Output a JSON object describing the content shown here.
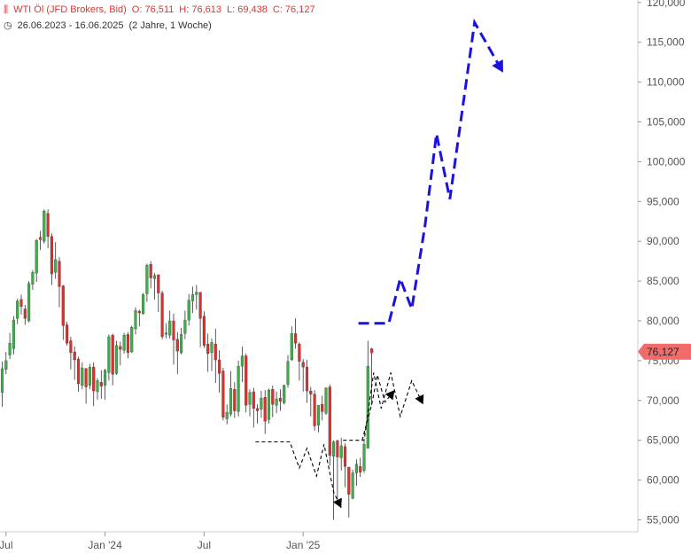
{
  "header": {
    "instrument": "WTI Öl (JFD Brokers, Bid)",
    "open": "O: 76,511",
    "high": "H: 76,613",
    "low": "L: 69,438",
    "close": "C: 76,127",
    "date_range": "26.06.2023 - 16.06.2025",
    "period": "(2 Jahre, 1 Woche)",
    "colors": {
      "ohlc": "#e0332d",
      "meta": "#333333"
    }
  },
  "chart_data": {
    "type": "candlestick",
    "y_axis": {
      "side": "right",
      "ticks": [
        55000,
        60000,
        65000,
        70000,
        75000,
        80000,
        85000,
        90000,
        95000,
        100000,
        105000,
        110000,
        115000,
        120000
      ],
      "tick_labels": [
        "55,000",
        "60,000",
        "65,000",
        "70,000",
        "75,000",
        "80,000",
        "85,000",
        "90,000",
        "95,000",
        "100,000",
        "105,000",
        "110,000",
        "115,000",
        "120,000"
      ],
      "range": [
        53500,
        120500
      ]
    },
    "x_axis": {
      "ticks": [
        {
          "label": "Jul",
          "week": 1
        },
        {
          "label": "Jan '24",
          "week": 27
        },
        {
          "label": "Jul",
          "week": 53
        },
        {
          "label": "Jan '25",
          "week": 79
        }
      ],
      "weeks": 105
    },
    "last_price": "76,127",
    "colors": {
      "up": "#3fae49",
      "down": "#d9312d",
      "wick": "#333333",
      "projection_big": "#1a12e0",
      "projection_small": "#000000",
      "price_tag": "#f26b6b"
    },
    "candles": [
      [
        71.0,
        74.0,
        69.2,
        74.9
      ],
      [
        73.9,
        75.0,
        73.3,
        76.1
      ],
      [
        75.7,
        77.2,
        75.2,
        78.5
      ],
      [
        76.5,
        80.1,
        75.8,
        80.6
      ],
      [
        80.3,
        82.5,
        79.6,
        82.8
      ],
      [
        82.7,
        81.8,
        80.8,
        83.3
      ],
      [
        81.5,
        80.3,
        79.5,
        82.0
      ],
      [
        80.0,
        84.7,
        79.8,
        85.0
      ],
      [
        84.6,
        86.1,
        83.9,
        86.4
      ],
      [
        86.0,
        90.1,
        84.9,
        90.3
      ],
      [
        90.5,
        90.2,
        88.9,
        91.3
      ],
      [
        90.0,
        93.8,
        89.7,
        94.0
      ],
      [
        93.5,
        90.6,
        89.1,
        94.0
      ],
      [
        90.6,
        85.9,
        84.5,
        91.0
      ],
      [
        86.1,
        87.7,
        85.3,
        89.9
      ],
      [
        87.5,
        84.3,
        81.7,
        88.0
      ],
      [
        84.4,
        79.4,
        77.6,
        84.5
      ],
      [
        79.5,
        77.2,
        76.9,
        79.9
      ],
      [
        77.5,
        76.0,
        73.9,
        78.0
      ],
      [
        76.1,
        75.1,
        72.6,
        76.8
      ],
      [
        75.2,
        72.1,
        71.1,
        75.5
      ],
      [
        71.9,
        74.1,
        71.4,
        74.8
      ],
      [
        74.0,
        71.7,
        69.6,
        74.1
      ],
      [
        71.9,
        74.2,
        71.4,
        74.6
      ],
      [
        74.2,
        71.2,
        69.3,
        74.8
      ],
      [
        71.1,
        72.5,
        70.1,
        72.8
      ],
      [
        72.3,
        71.8,
        70.2,
        73.8
      ],
      [
        71.9,
        73.8,
        70.1,
        74.0
      ],
      [
        73.5,
        78.0,
        72.5,
        78.3
      ],
      [
        78.2,
        73.3,
        71.9,
        78.4
      ],
      [
        73.4,
        76.9,
        73.2,
        77.5
      ],
      [
        76.8,
        76.4,
        74.4,
        77.4
      ],
      [
        76.3,
        78.2,
        75.9,
        78.5
      ],
      [
        78.3,
        76.0,
        75.3,
        78.6
      ],
      [
        76.1,
        79.2,
        76.0,
        79.4
      ],
      [
        79.0,
        81.3,
        78.3,
        81.7
      ],
      [
        81.2,
        81.0,
        79.3,
        81.4
      ],
      [
        80.9,
        83.3,
        80.8,
        83.5
      ],
      [
        83.4,
        87.0,
        82.4,
        87.2
      ],
      [
        87.1,
        85.4,
        84.1,
        87.5
      ],
      [
        85.3,
        85.7,
        82.7,
        86.0
      ],
      [
        85.8,
        83.5,
        81.1,
        85.7
      ],
      [
        83.5,
        78.0,
        77.7,
        83.8
      ],
      [
        78.3,
        78.5,
        77.8,
        79.7
      ],
      [
        78.2,
        80.0,
        77.8,
        81.3
      ],
      [
        80.0,
        77.6,
        74.5,
        80.9
      ],
      [
        77.7,
        76.2,
        73.3,
        78.6
      ],
      [
        76.0,
        78.3,
        75.8,
        79.1
      ],
      [
        78.4,
        80.1,
        77.7,
        81.3
      ],
      [
        80.1,
        82.6,
        79.4,
        83.4
      ],
      [
        82.5,
        83.3,
        81.0,
        84.3
      ],
      [
        83.3,
        83.6,
        81.4,
        84.5
      ],
      [
        83.6,
        80.3,
        76.7,
        83.6
      ],
      [
        80.6,
        76.9,
        76.6,
        81.2
      ],
      [
        77.1,
        75.9,
        73.6,
        78.4
      ],
      [
        76.0,
        77.3,
        73.7,
        77.8
      ],
      [
        77.1,
        75.1,
        72.2,
        79.0
      ],
      [
        75.1,
        73.4,
        71.0,
        76.3
      ],
      [
        73.7,
        67.9,
        67.5,
        74.1
      ],
      [
        67.7,
        68.5,
        67.0,
        69.5
      ],
      [
        68.3,
        71.5,
        68.0,
        73.7
      ],
      [
        71.4,
        68.7,
        67.8,
        72.3
      ],
      [
        68.6,
        74.3,
        68.0,
        75.0
      ],
      [
        74.3,
        75.6,
        72.3,
        76.8
      ],
      [
        75.6,
        69.4,
        68.5,
        75.9
      ],
      [
        69.5,
        71.0,
        68.0,
        71.4
      ],
      [
        71.1,
        69.0,
        66.6,
        71.6
      ],
      [
        69.0,
        68.7,
        67.1,
        69.5
      ],
      [
        68.9,
        70.3,
        67.8,
        71.2
      ],
      [
        70.4,
        67.4,
        65.8,
        71.3
      ],
      [
        67.6,
        71.3,
        67.1,
        71.5
      ],
      [
        71.4,
        69.5,
        67.9,
        71.9
      ],
      [
        69.4,
        70.2,
        68.4,
        71.1
      ],
      [
        70.3,
        69.9,
        68.7,
        71.4
      ],
      [
        69.7,
        71.9,
        69.5,
        72.0
      ],
      [
        72.0,
        74.9,
        71.6,
        75.7
      ],
      [
        75.1,
        78.4,
        75.0,
        79.3
      ],
      [
        78.4,
        77.2,
        76.5,
        80.3
      ],
      [
        77.1,
        74.9,
        72.5,
        77.3
      ],
      [
        74.8,
        74.2,
        71.1,
        75.2
      ],
      [
        74.2,
        71.2,
        69.7,
        75.1
      ],
      [
        71.2,
        70.8,
        68.0,
        71.7
      ],
      [
        70.8,
        66.8,
        66.2,
        71.3
      ],
      [
        66.9,
        69.4,
        66.0,
        69.4
      ],
      [
        69.5,
        68.6,
        67.5,
        70.6
      ],
      [
        68.4,
        71.6,
        68.2,
        71.6
      ],
      [
        71.7,
        63.1,
        61.8,
        72.0
      ],
      [
        63.0,
        64.8,
        55.0,
        65.0
      ],
      [
        65.0,
        62.9,
        57.4,
        63.4
      ],
      [
        62.8,
        64.3,
        61.2,
        65.3
      ],
      [
        64.2,
        61.7,
        59.1,
        64.6
      ],
      [
        61.6,
        58.2,
        55.3,
        61.7
      ],
      [
        57.7,
        60.9,
        57.6,
        61.3
      ],
      [
        60.9,
        62.0,
        59.3,
        62.6
      ],
      [
        61.7,
        61.0,
        60.4,
        62.8
      ],
      [
        61.2,
        64.5,
        60.9,
        64.9
      ],
      [
        64.0,
        74.3,
        64.0,
        77.5
      ],
      [
        76.5,
        76.1,
        69.4,
        76.6
      ]
    ],
    "projections": [
      {
        "name": "blue_long",
        "points": [
          [
            93.5,
            79.7
          ],
          [
            101.5,
            79.7
          ],
          [
            104.5,
            85.3
          ],
          [
            107.5,
            81.5
          ],
          [
            111.0,
            92.0
          ],
          [
            114.0,
            103.5
          ],
          [
            117.5,
            95.3
          ],
          [
            124.0,
            117.5
          ],
          [
            131.5,
            111.2
          ]
        ]
      },
      {
        "name": "black_main",
        "points": [
          [
            66.5,
            64.8
          ],
          [
            75.5,
            64.8
          ],
          [
            78.0,
            61.5
          ],
          [
            80.0,
            64.0
          ],
          [
            82.5,
            60.5
          ],
          [
            84.5,
            64.5
          ],
          [
            87.0,
            58.5
          ],
          [
            89.0,
            56.5
          ]
        ]
      },
      {
        "name": "black_branch",
        "points": [
          [
            89.5,
            65.0
          ],
          [
            95.0,
            65.0
          ],
          [
            97.5,
            73.5
          ],
          [
            99.5,
            69.0
          ],
          [
            102.0,
            73.5
          ],
          [
            104.5,
            68.0
          ],
          [
            107.5,
            72.5
          ],
          [
            110.5,
            69.5
          ]
        ]
      },
      {
        "name": "black_up",
        "points": [
          [
            94.5,
            65.0
          ],
          [
            97.0,
            69.5
          ],
          [
            98.5,
            73.2
          ],
          [
            100.5,
            69.8
          ],
          [
            103.0,
            71.3
          ]
        ]
      }
    ]
  }
}
